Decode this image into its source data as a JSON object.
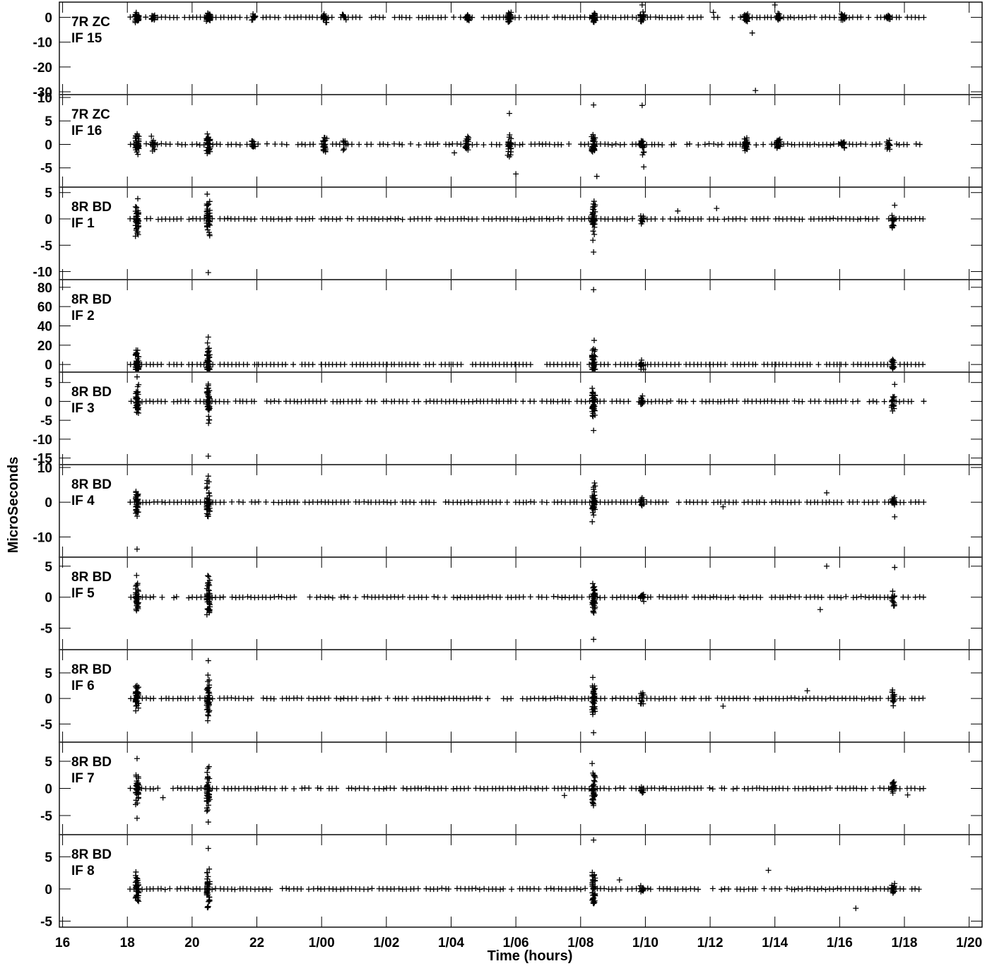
{
  "chart_data": {
    "type": "scatter",
    "marker": "plus",
    "xlabel": "Time (hours)",
    "ylabel": "MicroSeconds",
    "x_range_hours": [
      15.9,
      44.4
    ],
    "x_ticks": [
      {
        "value": 16,
        "label": "16"
      },
      {
        "value": 18,
        "label": "18"
      },
      {
        "value": 20,
        "label": "20"
      },
      {
        "value": 22,
        "label": "22"
      },
      {
        "value": 24,
        "label": "1/00"
      },
      {
        "value": 26,
        "label": "1/02"
      },
      {
        "value": 28,
        "label": "1/04"
      },
      {
        "value": 30,
        "label": "1/06"
      },
      {
        "value": 32,
        "label": "1/08"
      },
      {
        "value": 34,
        "label": "1/10"
      },
      {
        "value": 36,
        "label": "1/12"
      },
      {
        "value": 38,
        "label": "1/14"
      },
      {
        "value": 40,
        "label": "1/16"
      },
      {
        "value": 42,
        "label": "1/18"
      },
      {
        "value": 44,
        "label": "1/20"
      }
    ],
    "panels": [
      {
        "station": "7R ZC",
        "if": "IF 15",
        "ylim": [
          -30,
          5
        ],
        "yticks": [
          0,
          -10,
          -20,
          -30
        ],
        "ytick_labels": [
          "0",
          "-10",
          "-20",
          "-30"
        ],
        "outliers": [
          [
            36.1,
            2.0
          ],
          [
            37.3,
            -6.3
          ],
          [
            37.4,
            -29.5
          ],
          [
            38.0,
            5.5
          ],
          [
            33.9,
            6.5
          ]
        ]
      },
      {
        "station": "7R ZC",
        "if": "IF 16",
        "ylim": [
          -8.5,
          10
        ],
        "yticks": [
          -5,
          0,
          5,
          10
        ],
        "ytick_labels": [
          "-5",
          "0",
          "5",
          "10"
        ],
        "outliers": [
          [
            29.8,
            6.6
          ],
          [
            30.0,
            -6.3
          ],
          [
            32.4,
            8.4
          ],
          [
            32.5,
            -6.8
          ],
          [
            33.9,
            8.3
          ],
          [
            33.95,
            -4.8
          ],
          [
            28.1,
            -1.8
          ]
        ]
      },
      {
        "station": "8R BD",
        "if": "IF 1",
        "ylim": [
          -11,
          5.5
        ],
        "yticks": [
          -10,
          -5,
          0,
          5
        ],
        "ytick_labels": [
          "-10",
          "-5",
          "0",
          "5"
        ],
        "outliers": [
          [
            20.5,
            -10.2
          ],
          [
            35.0,
            1.5
          ],
          [
            36.2,
            2.0
          ],
          [
            32.4,
            -6.3
          ],
          [
            41.7,
            2.6
          ]
        ]
      },
      {
        "station": "8R BD",
        "if": "IF 2",
        "ylim": [
          -5,
          85
        ],
        "yticks": [
          0,
          20,
          40,
          60,
          80
        ],
        "ytick_labels": [
          "0",
          "20",
          "40",
          "60",
          "80"
        ],
        "outliers": [
          [
            32.4,
            77.5
          ]
        ]
      },
      {
        "station": "8R BD",
        "if": "IF 3",
        "ylim": [
          -16,
          7
        ],
        "yticks": [
          -15,
          -10,
          -5,
          0,
          5
        ],
        "ytick_labels": [
          "-15",
          "-10",
          "-5",
          "0",
          "5"
        ],
        "outliers": [
          [
            20.5,
            -14.5
          ],
          [
            32.4,
            -7.7
          ],
          [
            18.3,
            6.5
          ],
          [
            41.7,
            4.5
          ]
        ]
      },
      {
        "station": "8R BD",
        "if": "IF 4",
        "ylim": [
          -15,
          10
        ],
        "yticks": [
          -10,
          0,
          10
        ],
        "ytick_labels": [
          "-10",
          "0",
          "10"
        ],
        "outliers": [
          [
            18.3,
            -13.5
          ],
          [
            20.5,
            7.5
          ],
          [
            39.6,
            2.7
          ],
          [
            41.7,
            -4.2
          ],
          [
            36.4,
            -1.3
          ]
        ]
      },
      {
        "station": "8R BD",
        "if": "IF 5",
        "ylim": [
          -8,
          6
        ],
        "yticks": [
          -5,
          0,
          5
        ],
        "ytick_labels": [
          "-5",
          "0",
          "5"
        ],
        "outliers": [
          [
            39.6,
            5.0
          ],
          [
            32.4,
            -6.8
          ],
          [
            39.4,
            -2.0
          ],
          [
            41.7,
            4.8
          ]
        ]
      },
      {
        "station": "8R BD",
        "if": "IF 6",
        "ylim": [
          -8,
          9
        ],
        "yticks": [
          -5,
          0,
          5
        ],
        "ytick_labels": [
          "-5",
          "0",
          "5"
        ],
        "outliers": [
          [
            20.5,
            7.4
          ],
          [
            32.4,
            -6.7
          ],
          [
            36.4,
            -1.5
          ],
          [
            39.0,
            1.5
          ]
        ]
      },
      {
        "station": "8R BD",
        "if": "IF 7",
        "ylim": [
          -8,
          8
        ],
        "yticks": [
          -5,
          0,
          5
        ],
        "ytick_labels": [
          "-5",
          "0",
          "5"
        ],
        "outliers": [
          [
            18.3,
            5.5
          ],
          [
            18.3,
            -5.5
          ],
          [
            20.5,
            -6.2
          ],
          [
            19.1,
            -1.7
          ],
          [
            31.5,
            -1.3
          ],
          [
            42.1,
            -1.2
          ]
        ]
      },
      {
        "station": "8R BD",
        "if": "IF 8",
        "ylim": [
          -5.5,
          8
        ],
        "yticks": [
          -5,
          0,
          5
        ],
        "ytick_labels": [
          "-5",
          "0",
          "5"
        ],
        "outliers": [
          [
            32.4,
            7.6
          ],
          [
            20.5,
            6.3
          ],
          [
            37.8,
            2.9
          ],
          [
            40.5,
            -3.0
          ],
          [
            33.2,
            1.4
          ]
        ]
      }
    ]
  }
}
